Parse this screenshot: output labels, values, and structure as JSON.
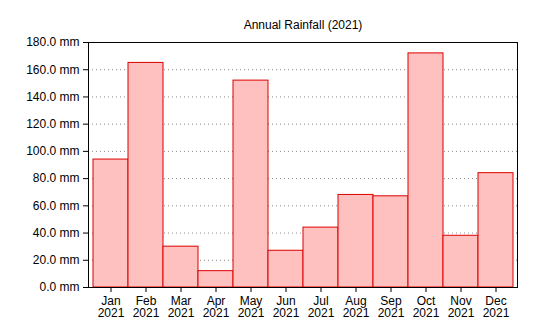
{
  "chart_data": {
    "type": "bar",
    "title": "Annual Rainfall (2021)",
    "categories": [
      "Jan\n2021",
      "Feb\n2021",
      "Mar\n2021",
      "Apr\n2021",
      "May\n2021",
      "Jun\n2021",
      "Jul\n2021",
      "Aug\n2021",
      "Sep\n2021",
      "Oct\n2021",
      "Nov\n2021",
      "Dec\n2021"
    ],
    "values": [
      94,
      165,
      30,
      12,
      152,
      27,
      44,
      68,
      67,
      172,
      38,
      84
    ],
    "color": "#ffc0c0",
    "ylim": [
      0,
      180
    ],
    "yticks": [
      {
        "value": 0,
        "label": "0.0 mm"
      },
      {
        "value": 20,
        "label": "20.0 mm"
      },
      {
        "value": 40,
        "label": "40.0 mm"
      },
      {
        "value": 60,
        "label": "60.0 mm"
      },
      {
        "value": 80,
        "label": "80.0 mm"
      },
      {
        "value": 100,
        "label": "100.0 mm"
      },
      {
        "value": 120,
        "label": "120.0 mm"
      },
      {
        "value": 140,
        "label": "140.0 mm"
      },
      {
        "value": 160,
        "label": "160.0 mm"
      },
      {
        "value": 180,
        "label": "180.0 mm"
      }
    ],
    "grid": true
  }
}
